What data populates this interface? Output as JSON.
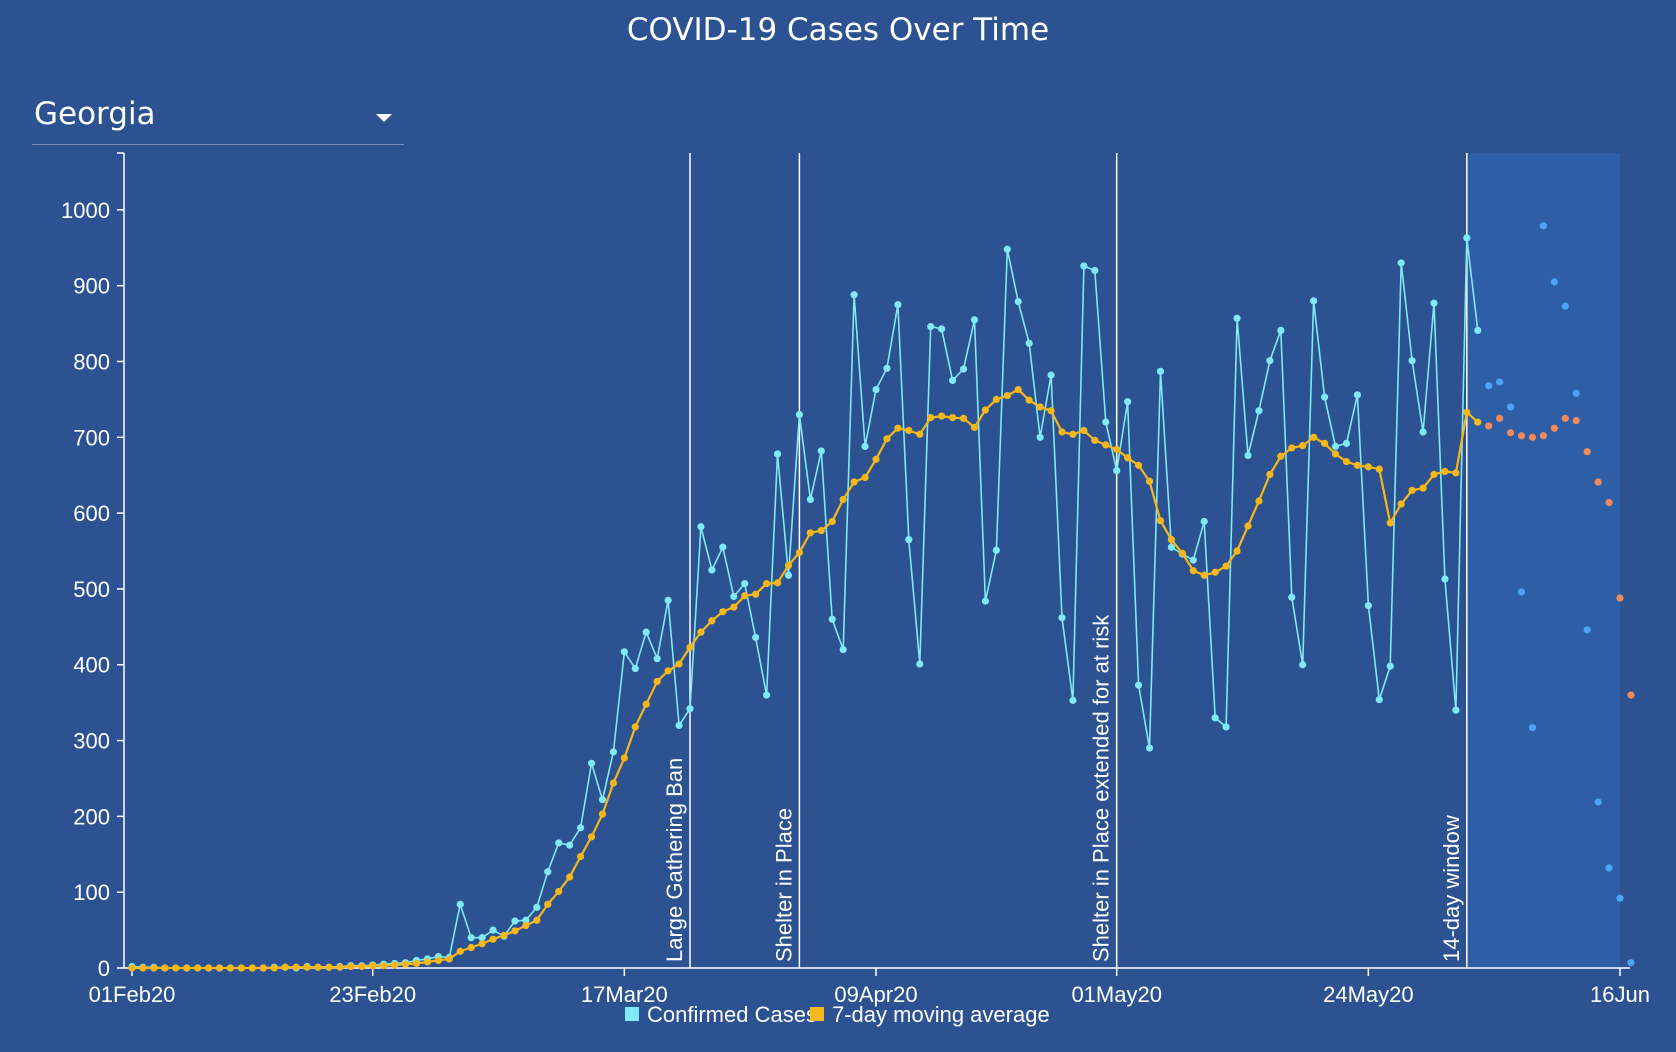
{
  "title": "COVID-19 Cases Over Time",
  "state_select": {
    "value": "Georgia"
  },
  "colors": {
    "background": "#2c5291",
    "confirmed": "#7fe9f5",
    "moving_avg": "#f6b71a",
    "forecast_confirmed": "#4aa3f5",
    "forecast_avg": "#f08a5d",
    "forecast_band": "#2e5ea5"
  },
  "chart_data": {
    "type": "line",
    "title": "COVID-19 Cases Over Time",
    "x_start": "2020-02-01",
    "x_ticks": [
      "01Feb20",
      "23Feb20",
      "17Mar20",
      "09Apr20",
      "01May20",
      "24May20",
      "16Jun"
    ],
    "x_tick_days": [
      0,
      22,
      45,
      68,
      90,
      113,
      136
    ],
    "y_ticks": [
      0,
      100,
      200,
      300,
      400,
      500,
      600,
      700,
      800,
      900,
      1000
    ],
    "ylim": [
      0,
      1075
    ],
    "xlim_days": [
      0,
      136
    ],
    "forecast_window_days": [
      122,
      136
    ],
    "annotations": [
      {
        "day": 51,
        "label": "Large Gathering Ban"
      },
      {
        "day": 61,
        "label": "Shelter in Place"
      },
      {
        "day": 90,
        "label": "Shelter in Place extended for at risk"
      },
      {
        "day": 122,
        "label": "14-day window"
      }
    ],
    "series": [
      {
        "name": "Confirmed Cases",
        "values": [
          2,
          1,
          1,
          0,
          0,
          0,
          0,
          0,
          0,
          0,
          0,
          0,
          0,
          1,
          1,
          0,
          2,
          1,
          1,
          2,
          3,
          3,
          4,
          5,
          6,
          7,
          10,
          12,
          15,
          14,
          84,
          40,
          40,
          50,
          42,
          62,
          63,
          80,
          127,
          165,
          162,
          185,
          270,
          222,
          285,
          417,
          395,
          443,
          408,
          485,
          320,
          342,
          582,
          525,
          555,
          490,
          507,
          436,
          360,
          678,
          518,
          730,
          618,
          682,
          460,
          420,
          888,
          688,
          763,
          791,
          875,
          565,
          401,
          846,
          843,
          775,
          790,
          855,
          484,
          551,
          948,
          879,
          824,
          700,
          782,
          462,
          353,
          926,
          920,
          720,
          656,
          747,
          373,
          290,
          787,
          555,
          546,
          538,
          589,
          330,
          318,
          857,
          676,
          735,
          801,
          841,
          489,
          400,
          880,
          753,
          688,
          692,
          756,
          478,
          354,
          398,
          930,
          801,
          707,
          877,
          513,
          340,
          963,
          841
        ],
        "forecast": [
          768,
          773,
          740,
          496,
          317,
          979,
          905,
          873,
          758,
          446,
          219,
          132,
          92,
          7
        ]
      },
      {
        "name": "7-day moving average",
        "values": [
          0,
          0,
          0,
          0,
          0,
          0,
          0,
          0,
          0,
          0,
          0,
          0,
          0,
          0,
          1,
          1,
          1,
          1,
          1,
          1,
          2,
          2,
          3,
          3,
          4,
          5,
          6,
          8,
          10,
          12,
          22,
          27,
          32,
          38,
          43,
          49,
          56,
          63,
          84,
          101,
          120,
          147,
          173,
          203,
          244,
          277,
          318,
          348,
          378,
          392,
          401,
          423,
          443,
          458,
          470,
          476,
          491,
          493,
          507,
          508,
          531,
          548,
          574,
          577,
          589,
          618,
          641,
          647,
          671,
          698,
          712,
          709,
          704,
          726,
          728,
          726,
          725,
          713,
          736,
          750,
          755,
          763,
          749,
          740,
          735,
          707,
          704,
          709,
          696,
          690,
          684,
          673,
          663,
          642,
          590,
          565,
          547,
          524,
          518,
          522,
          530,
          550,
          583,
          616,
          651,
          675,
          686,
          689,
          700,
          692,
          678,
          668,
          663,
          661,
          658,
          587,
          612,
          630,
          633,
          651,
          655,
          653,
          733,
          720
        ],
        "forecast": [
          715,
          725,
          706,
          702,
          700,
          702,
          712,
          725,
          722,
          681,
          641,
          614,
          488,
          360
        ]
      }
    ],
    "legend": [
      "Confirmed Cases",
      "7-day moving average"
    ],
    "legend_position": "bottom-center"
  }
}
